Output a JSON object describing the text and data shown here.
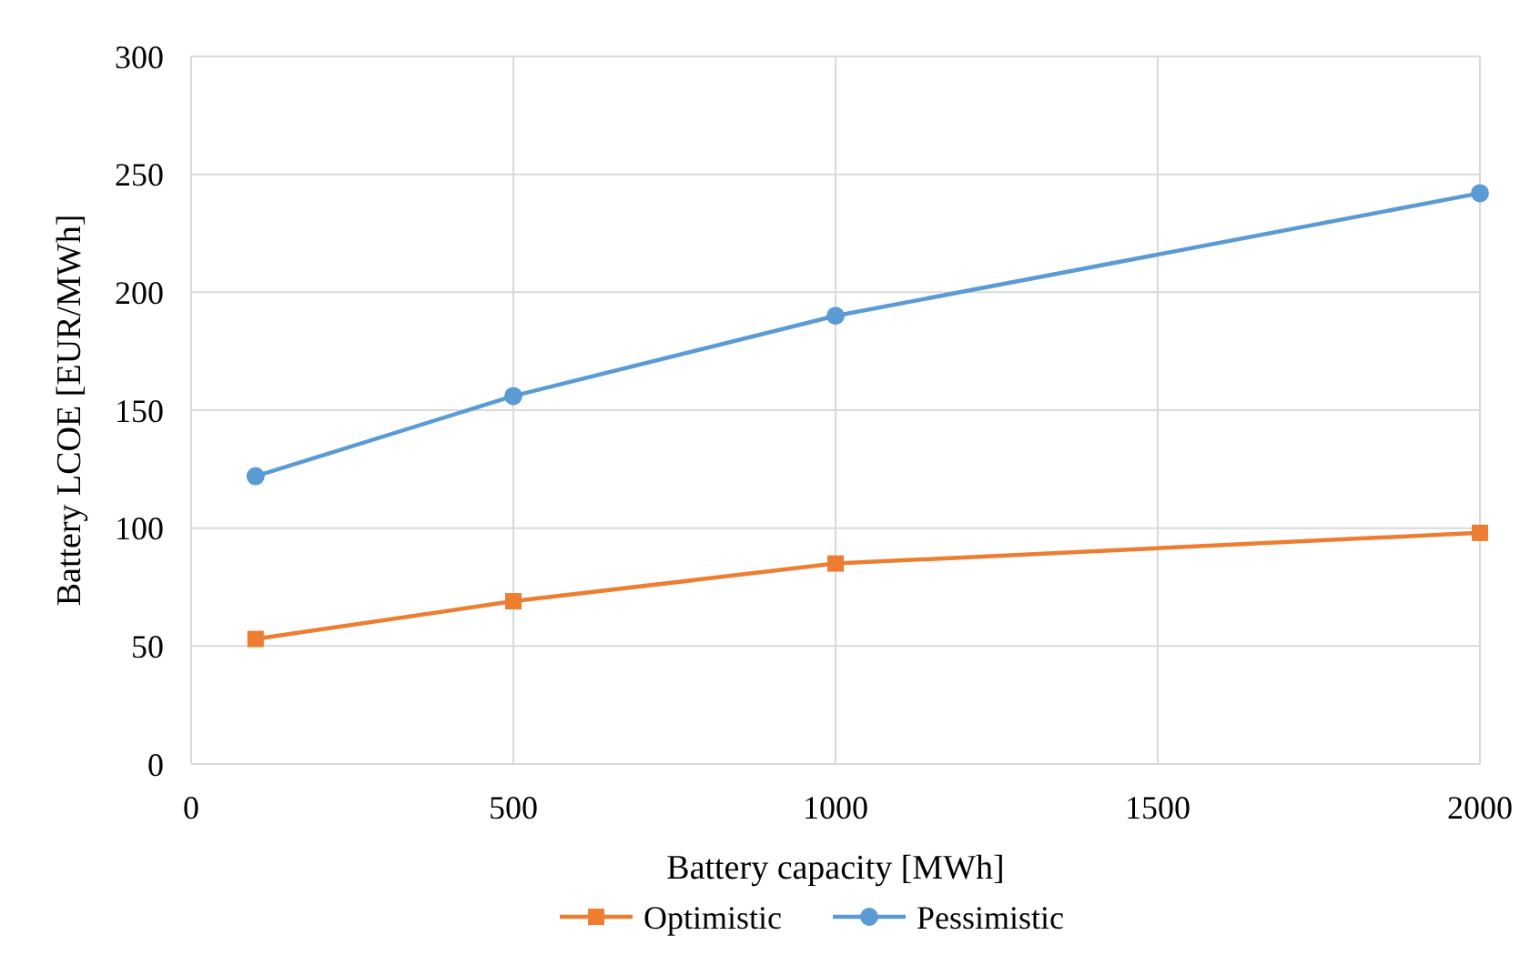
{
  "chart_data": {
    "type": "line",
    "xlabel": "Battery capacity [MWh]",
    "ylabel": "Battery LCOE [EUR/MWh]",
    "x": [
      100,
      500,
      1000,
      2000
    ],
    "series": [
      {
        "name": "Optimistic",
        "color": "#ed7d31",
        "marker": "square",
        "values": [
          53,
          69,
          85,
          98
        ]
      },
      {
        "name": "Pessimistic",
        "color": "#5b9bd5",
        "marker": "circle",
        "values": [
          122,
          156,
          190,
          242
        ]
      }
    ],
    "xlim": [
      0,
      2000
    ],
    "xticks": [
      0,
      500,
      1000,
      1500,
      2000
    ],
    "ylim": [
      0,
      300
    ],
    "yticks": [
      0,
      50,
      100,
      150,
      200,
      250,
      300
    ],
    "grid": true,
    "legend": "bottom",
    "line_style": "solid"
  }
}
